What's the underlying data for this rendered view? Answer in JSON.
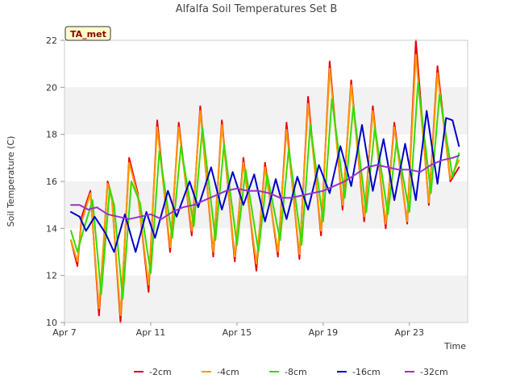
{
  "chart_data": {
    "type": "line",
    "title": "Alfalfa Soil Temperatures Set B",
    "xlabel": "Time",
    "ylabel": "Soil Temperature (C)",
    "badge": "TA_met",
    "xlim": [
      7,
      25.7
    ],
    "ylim": [
      10,
      22
    ],
    "x_ticks": [
      {
        "value": 7,
        "label": "Apr 7"
      },
      {
        "value": 11,
        "label": "Apr 11"
      },
      {
        "value": 15,
        "label": "Apr 15"
      },
      {
        "value": 19,
        "label": "Apr 19"
      },
      {
        "value": 23,
        "label": "Apr 23"
      }
    ],
    "y_ticks": [
      10,
      12,
      14,
      16,
      18,
      20,
      22
    ],
    "grid": "banded horizontal",
    "legend_position": "bottom",
    "series": [
      {
        "name": "-2cm",
        "color": "#e8000b",
        "x": [
          7.3,
          7.6,
          7.8,
          8.2,
          8.6,
          9.0,
          9.2,
          9.6,
          10.0,
          10.4,
          10.9,
          11.3,
          11.9,
          12.3,
          12.9,
          13.3,
          13.9,
          14.3,
          14.9,
          15.3,
          15.9,
          16.3,
          16.9,
          17.3,
          17.9,
          18.3,
          18.9,
          19.3,
          19.9,
          20.3,
          20.9,
          21.3,
          21.9,
          22.3,
          22.9,
          23.3,
          23.9,
          24.3,
          24.9,
          25.3
        ],
        "y": [
          13.5,
          12.4,
          14.5,
          15.6,
          10.3,
          16.0,
          15.3,
          10.0,
          17.0,
          15.5,
          11.3,
          18.6,
          13.0,
          18.5,
          13.7,
          19.2,
          12.8,
          18.6,
          12.6,
          17.0,
          12.2,
          16.8,
          12.8,
          18.5,
          12.7,
          19.6,
          13.7,
          21.1,
          14.8,
          20.3,
          14.3,
          19.2,
          14.0,
          18.5,
          14.2,
          22.0,
          15.0,
          20.9,
          16.0,
          16.6
        ]
      },
      {
        "name": "-4cm",
        "color": "#ff9900",
        "x": [
          7.3,
          7.6,
          7.8,
          8.2,
          8.6,
          9.0,
          9.2,
          9.6,
          10.0,
          10.4,
          10.9,
          11.3,
          11.9,
          12.3,
          12.9,
          13.3,
          13.9,
          14.3,
          14.9,
          15.3,
          15.9,
          16.3,
          16.9,
          17.3,
          17.9,
          18.3,
          18.9,
          19.3,
          19.9,
          20.3,
          20.9,
          21.3,
          21.9,
          22.3,
          22.9,
          23.3,
          23.9,
          24.3,
          24.9,
          25.3
        ],
        "y": [
          13.5,
          12.6,
          14.3,
          15.5,
          10.6,
          15.9,
          15.2,
          10.3,
          16.8,
          15.4,
          11.6,
          18.3,
          13.2,
          18.3,
          13.9,
          19.0,
          13.0,
          18.4,
          12.8,
          16.8,
          12.5,
          16.6,
          13.0,
          18.2,
          12.9,
          19.3,
          13.9,
          20.8,
          15.0,
          20.1,
          14.5,
          19.0,
          14.2,
          18.3,
          14.3,
          21.4,
          15.1,
          20.6,
          16.1,
          16.9
        ]
      },
      {
        "name": "-8cm",
        "color": "#33dd00",
        "x": [
          7.3,
          7.6,
          7.9,
          8.3,
          8.7,
          9.1,
          9.3,
          9.7,
          10.1,
          10.5,
          11.0,
          11.4,
          12.0,
          12.4,
          13.0,
          13.4,
          14.0,
          14.4,
          15.0,
          15.4,
          16.0,
          16.4,
          17.0,
          17.4,
          18.0,
          18.4,
          19.0,
          19.4,
          20.0,
          20.4,
          21.0,
          21.4,
          22.0,
          22.4,
          23.0,
          23.4,
          24.0,
          24.4,
          25.0,
          25.3
        ],
        "y": [
          13.9,
          13.0,
          14.0,
          15.2,
          11.2,
          15.7,
          15.0,
          11.0,
          16.0,
          15.1,
          12.1,
          17.3,
          13.6,
          17.5,
          14.1,
          18.3,
          13.5,
          17.6,
          13.3,
          16.5,
          13.0,
          16.3,
          13.5,
          17.4,
          13.3,
          18.4,
          14.3,
          19.5,
          15.3,
          19.2,
          14.7,
          18.3,
          14.6,
          17.7,
          14.7,
          20.2,
          15.5,
          19.7,
          16.2,
          17.2
        ]
      },
      {
        "name": "-16cm",
        "color": "#0000cc",
        "x": [
          7.3,
          7.7,
          8.0,
          8.4,
          8.9,
          9.3,
          9.8,
          10.3,
          10.8,
          11.2,
          11.8,
          12.2,
          12.8,
          13.2,
          13.8,
          14.3,
          14.8,
          15.3,
          15.8,
          16.3,
          16.8,
          17.3,
          17.8,
          18.3,
          18.8,
          19.3,
          19.8,
          20.3,
          20.8,
          21.3,
          21.8,
          22.3,
          22.8,
          23.3,
          23.8,
          24.3,
          24.7,
          25.0,
          25.3
        ],
        "y": [
          14.7,
          14.5,
          13.9,
          14.5,
          13.8,
          13.0,
          14.6,
          13.0,
          14.7,
          13.6,
          15.6,
          14.5,
          16.0,
          14.9,
          16.6,
          14.8,
          16.4,
          15.0,
          16.3,
          14.3,
          16.1,
          14.4,
          16.2,
          14.8,
          16.7,
          15.5,
          17.5,
          15.8,
          18.4,
          15.6,
          17.8,
          15.2,
          17.6,
          15.2,
          19.0,
          15.9,
          18.7,
          18.6,
          17.5
        ]
      },
      {
        "name": "-32cm",
        "color": "#9933cc",
        "x": [
          7.3,
          7.7,
          8.1,
          8.5,
          9.0,
          9.5,
          10.0,
          10.5,
          11.0,
          11.5,
          12.0,
          12.5,
          13.0,
          13.5,
          14.0,
          14.5,
          15.0,
          15.5,
          16.0,
          16.5,
          17.0,
          17.5,
          18.0,
          18.5,
          19.0,
          19.5,
          20.0,
          20.5,
          21.0,
          21.5,
          22.0,
          22.5,
          23.0,
          23.5,
          24.0,
          24.5,
          25.0,
          25.3
        ],
        "y": [
          15.0,
          15.0,
          14.8,
          14.9,
          14.6,
          14.5,
          14.4,
          14.5,
          14.6,
          14.4,
          14.7,
          14.9,
          15.0,
          15.2,
          15.4,
          15.6,
          15.7,
          15.6,
          15.6,
          15.5,
          15.3,
          15.3,
          15.4,
          15.5,
          15.6,
          15.8,
          16.0,
          16.3,
          16.6,
          16.7,
          16.6,
          16.5,
          16.5,
          16.4,
          16.7,
          16.9,
          17.0,
          17.1
        ]
      }
    ]
  }
}
